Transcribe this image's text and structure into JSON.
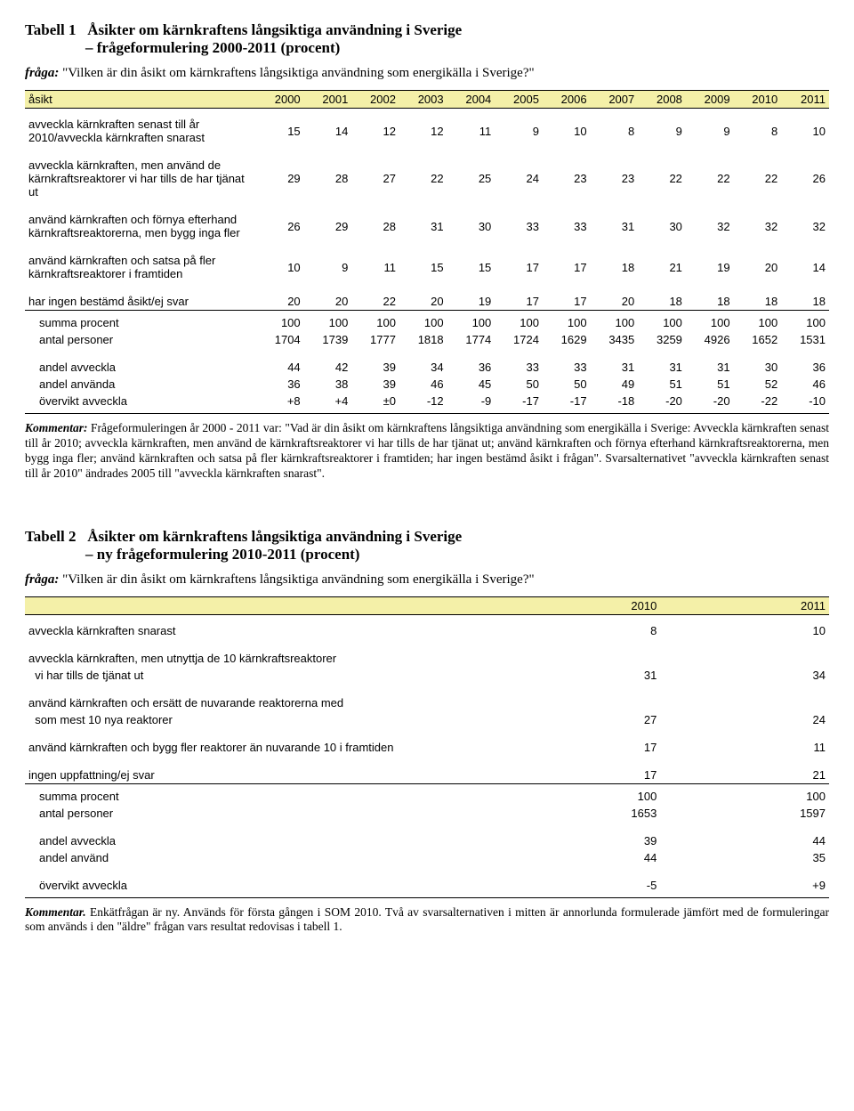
{
  "colors": {
    "header_bg": "#f4f0a8",
    "rule": "#000000",
    "text": "#000000",
    "page_bg": "#ffffff"
  },
  "t1": {
    "heading_lead": "Tabell 1",
    "heading_rest": "Åsikter om kärnkraftens långsiktiga användning i Sverige frågeformulering 2000-2011 (procent)",
    "heading_l1": "Åsikter om kärnkraftens långsiktiga användning i Sverige",
    "heading_l2": "– frågeformulering 2000-2011 (procent)",
    "question_lead": "fråga:",
    "question_rest": "\"Vilken är din åsikt om kärnkraftens långsiktiga användning som energikälla i Sverige?\"",
    "head_label": "åsikt",
    "years": [
      "2000",
      "2001",
      "2002",
      "2003",
      "2004",
      "2005",
      "2006",
      "2007",
      "2008",
      "2009",
      "2010",
      "2011"
    ],
    "rows": [
      {
        "label": "avveckla kärnkraften senast till år 2010/avveckla kärnkraften snarast",
        "v": [
          "15",
          "14",
          "12",
          "12",
          "11",
          "9",
          "10",
          "8",
          "9",
          "9",
          "8",
          "10"
        ]
      },
      {
        "label": "avveckla kärnkraften, men använd de kärnkraftsreaktorer vi har tills de har tjänat ut",
        "v": [
          "29",
          "28",
          "27",
          "22",
          "25",
          "24",
          "23",
          "23",
          "22",
          "22",
          "22",
          "26"
        ]
      },
      {
        "label": "använd kärnkraften och förnya efterhand kärnkraftsreaktorerna, men bygg inga fler",
        "v": [
          "26",
          "29",
          "28",
          "31",
          "30",
          "33",
          "33",
          "31",
          "30",
          "32",
          "32",
          "32"
        ]
      },
      {
        "label": "använd kärnkraften och satsa på fler kärnkraftsreaktorer i framtiden",
        "v": [
          "10",
          "9",
          "11",
          "15",
          "15",
          "17",
          "17",
          "18",
          "21",
          "19",
          "20",
          "14"
        ]
      },
      {
        "label": "har ingen bestämd åsikt/ej svar",
        "v": [
          "20",
          "20",
          "22",
          "20",
          "19",
          "17",
          "17",
          "20",
          "18",
          "18",
          "18",
          "18"
        ]
      }
    ],
    "summary": [
      {
        "label": "summa procent",
        "indent": true,
        "v": [
          "100",
          "100",
          "100",
          "100",
          "100",
          "100",
          "100",
          "100",
          "100",
          "100",
          "100",
          "100"
        ]
      },
      {
        "label": "antal personer",
        "indent": true,
        "v": [
          "1704",
          "1739",
          "1777",
          "1818",
          "1774",
          "1724",
          "1629",
          "3435",
          "3259",
          "4926",
          "1652",
          "1531"
        ]
      }
    ],
    "shares": [
      {
        "label": "andel avveckla",
        "indent": true,
        "v": [
          "44",
          "42",
          "39",
          "34",
          "36",
          "33",
          "33",
          "31",
          "31",
          "31",
          "30",
          "36"
        ]
      },
      {
        "label": "andel använda",
        "indent": true,
        "v": [
          "36",
          "38",
          "39",
          "46",
          "45",
          "50",
          "50",
          "49",
          "51",
          "51",
          "52",
          "46"
        ]
      },
      {
        "label": "övervikt avveckla",
        "indent": true,
        "v": [
          "+8",
          "+4",
          "±0",
          "-12",
          "-9",
          "-17",
          "-17",
          "-18",
          "-20",
          "-20",
          "-22",
          "-10"
        ]
      }
    ],
    "kommentar_lead": "Kommentar:",
    "kommentar_rest": "Frågeformuleringen år 2000 - 2011 var: \"Vad är din åsikt om kärnkraftens långsiktiga användning som energikälla i Sverige: Avveckla kärnkraften senast till år 2010; avveckla kärnkraften, men använd de kärnkraftsreaktorer vi har tills de har tjänat ut; använd kärnkraften och förnya efterhand kärnkraftsreaktorerna, men bygg inga fler; använd kärnkraften och satsa på fler kärnkraftsreaktorer i framtiden; har ingen bestämd åsikt i frågan\". Svarsalternativet \"avveckla kärnkraften senast till år 2010\" ändrades 2005 till \"avveckla kärnkraften snarast\"."
  },
  "t2": {
    "heading_lead": "Tabell 2",
    "heading_l1": "Åsikter om kärnkraftens långsiktiga användning i Sverige",
    "heading_l2": "– ny frågeformulering 2010-2011 (procent)",
    "question_lead": "fråga:",
    "question_rest": "\"Vilken är din åsikt om kärnkraftens långsiktiga användning som energikälla i Sverige?\"",
    "years": [
      "2010",
      "2011"
    ],
    "rows": [
      {
        "label": "avveckla kärnkraften snarast",
        "v": [
          "8",
          "10"
        ]
      },
      {
        "label_a": "avveckla kärnkraften, men utnyttja de 10 kärnkraftsreaktorer",
        "label_b": "vi har tills de tjänat ut",
        "v": [
          "31",
          "34"
        ]
      },
      {
        "label_a": "använd kärnkraften och ersätt de nuvarande reaktorerna med",
        "label_b": "som mest 10 nya reaktorer",
        "v": [
          "27",
          "24"
        ]
      },
      {
        "label": "använd kärnkraften och bygg fler reaktorer än nuvarande 10 i framtiden",
        "v": [
          "17",
          "11"
        ]
      },
      {
        "label": "ingen uppfattning/ej svar",
        "v": [
          "17",
          "21"
        ]
      }
    ],
    "summary": [
      {
        "label": "summa procent",
        "indent": true,
        "v": [
          "100",
          "100"
        ]
      },
      {
        "label": "antal personer",
        "indent": true,
        "v": [
          "1653",
          "1597"
        ]
      }
    ],
    "shares": [
      {
        "label": "andel avveckla",
        "indent": true,
        "v": [
          "39",
          "44"
        ]
      },
      {
        "label": "andel använd",
        "indent": true,
        "v": [
          "44",
          "35"
        ]
      }
    ],
    "overvikt": {
      "label": "övervikt avveckla",
      "indent": true,
      "v": [
        "-5",
        "+9"
      ]
    },
    "kommentar_lead": "Kommentar.",
    "kommentar_rest": "Enkätfrågan är ny. Används för första gången i SOM 2010. Två av svarsalternativen i mitten är annorlunda formulerade jämfört med de formuleringar som används i den \"äldre\" frågan vars resultat redovisas i tabell 1."
  }
}
